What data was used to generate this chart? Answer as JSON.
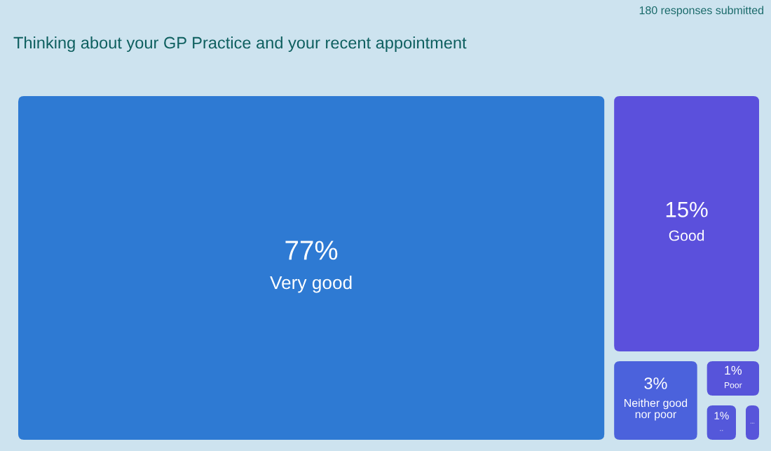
{
  "chart_data": {
    "type": "other",
    "title": "Thinking about your GP Practice and your recent appointment",
    "annotations": [
      "180 responses submitted"
    ],
    "categories": [
      "Very good",
      "Good",
      "Neither good nor poor",
      "Poor",
      "..",
      "..."
    ],
    "values": [
      77,
      15,
      3,
      1,
      1,
      null
    ],
    "value_labels": [
      "77%",
      "15%",
      "3%",
      "1%",
      "1%",
      null
    ],
    "colors": [
      "#2e7ad3",
      "#5b50dc",
      "#4b62dc",
      "#5754da",
      "#5458da",
      "#5855da"
    ]
  }
}
